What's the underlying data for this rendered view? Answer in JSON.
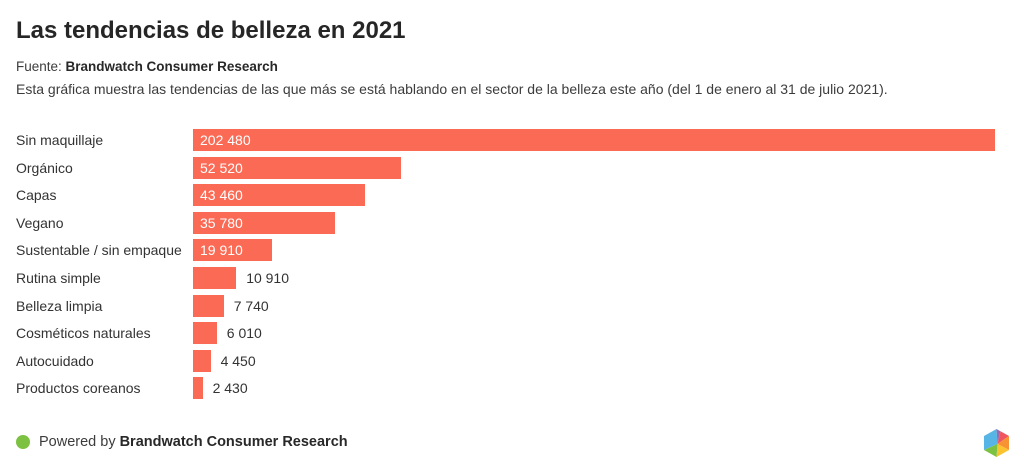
{
  "header": {
    "title": "Las tendencias de belleza en 2021",
    "source_prefix": "Fuente:",
    "source_name": "Brandwatch Consumer Research",
    "description": "Esta gráfica muestra las tendencias de las que más se está hablando en el sector de la belleza este año (del 1 de enero al 31 de julio 2021)."
  },
  "chart_data": {
    "type": "bar",
    "orientation": "horizontal",
    "title": "Las tendencias de belleza en 2021",
    "categories": [
      "Sin maquillaje",
      "Orgánico",
      "Capas",
      "Vegano",
      "Sustentable / sin empaque",
      "Rutina simple",
      "Belleza limpia",
      "Cosméticos naturales",
      "Autocuidado",
      "Productos coreanos"
    ],
    "values": [
      202480,
      52520,
      43460,
      35780,
      19910,
      10910,
      7740,
      6010,
      4450,
      2430
    ],
    "value_labels": [
      "202 480",
      "52 520",
      "43 460",
      "35 780",
      "19 910",
      "10 910",
      "7 740",
      "6 010",
      "4 450",
      "2 430"
    ],
    "xlim": [
      0,
      202480
    ],
    "grid": false,
    "legend": false,
    "bar_color": "#fa6a55",
    "value_label_position": "inside-left for wide bars, outside-right for narrow bars"
  },
  "footer": {
    "powered_by_prefix": "Powered by",
    "powered_by_brand": "Brandwatch Consumer Research",
    "dot_color": "#7dc142"
  },
  "logo": {
    "name": "brandwatch-hexagon",
    "facets": {
      "blue": "#56b5e5",
      "purple": "#9c6bae",
      "red": "#f0545f",
      "orange": "#f79332",
      "yellow": "#fbc32e",
      "green": "#7dc142"
    }
  },
  "colors": {
    "bar": "#fa6a55",
    "title_text": "#262626",
    "body_text": "#3c3c3c",
    "value_inside_text": "#ffffff",
    "value_outside_text": "#333333",
    "background": "#ffffff"
  }
}
